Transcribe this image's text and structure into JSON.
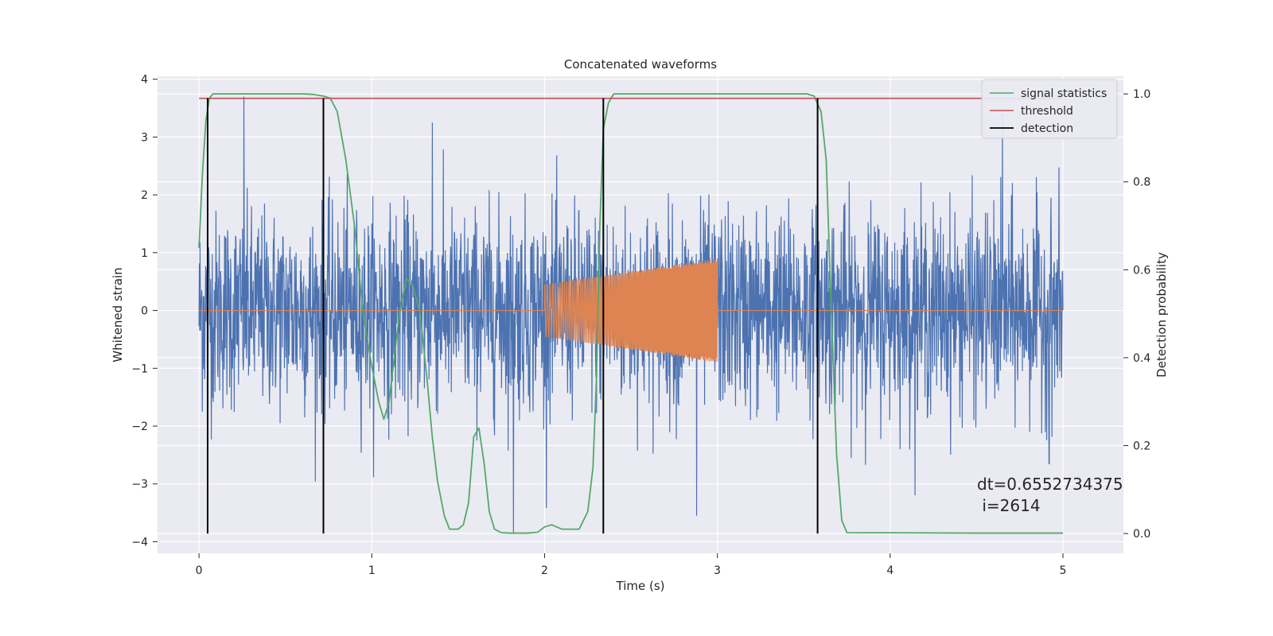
{
  "chart_data": {
    "type": "line",
    "title": "Concatenated waveforms",
    "xlabel": "Time (s)",
    "ylabel": "Whitened strain",
    "ylabel_right": "Detection probability",
    "xlim": [
      -0.24,
      5.35
    ],
    "ylim": [
      -4.2,
      4.05
    ],
    "ylim_right": [
      -0.045,
      1.04
    ],
    "x_ticks": [
      0,
      1,
      2,
      3,
      4,
      5
    ],
    "y_ticks": [
      -4,
      -3,
      -2,
      -1,
      0,
      1,
      2,
      3,
      4
    ],
    "y_ticks_right": [
      0.0,
      0.2,
      0.4,
      0.6,
      0.8,
      1.0
    ],
    "y_tick_labels": [
      "−4",
      "−3",
      "−2",
      "−1",
      "0",
      "1",
      "2",
      "3",
      "4"
    ],
    "y_tick_labels_right": [
      "0.0",
      "0.2",
      "0.4",
      "0.6",
      "0.8",
      "1.0"
    ],
    "grid": true,
    "legend_position": "top-right",
    "colors": {
      "strain": "#4c72b0",
      "template": "#dd8452",
      "signal": "#55a868",
      "threshold": "#c44e52",
      "detection": "#000000",
      "background": "#eaeaf2",
      "grid": "#ffffff"
    },
    "series": [
      {
        "name": "",
        "axis": "left",
        "kind": "noise",
        "x_range": [
          0,
          5
        ],
        "amplitude_std": 0.85,
        "peak_points": [
          {
            "x": 0.26,
            "y": 3.7
          },
          {
            "x": 1.35,
            "y": 3.25
          },
          {
            "x": 4.65,
            "y": 3.4
          },
          {
            "x": 1.82,
            "y": -3.85
          },
          {
            "x": 2.88,
            "y": -3.55
          },
          {
            "x": 0.05,
            "y": -2.5
          },
          {
            "x": 4.92,
            "y": -2.65
          }
        ]
      },
      {
        "name": "",
        "axis": "left",
        "kind": "chirp",
        "x_range": [
          2.0,
          3.0
        ],
        "amplitude_start": 0.45,
        "amplitude_end": 0.9,
        "flat_value": 0
      },
      {
        "name": "signal statistics",
        "axis": "right",
        "x": [
          0,
          0.02,
          0.04,
          0.06,
          0.08,
          0.1,
          0.6,
          0.66,
          0.72,
          0.76,
          0.8,
          0.85,
          0.9,
          0.95,
          1.0,
          1.04,
          1.07,
          1.1,
          1.13,
          1.16,
          1.2,
          1.24,
          1.28,
          1.32,
          1.35,
          1.38,
          1.42,
          1.45,
          1.5,
          1.53,
          1.56,
          1.59,
          1.62,
          1.65,
          1.68,
          1.71,
          1.75,
          1.8,
          1.9,
          1.96,
          2.0,
          2.04,
          2.1,
          2.15,
          2.2,
          2.25,
          2.28,
          2.3,
          2.32,
          2.34,
          2.37,
          2.4,
          2.45,
          3.52,
          3.56,
          3.6,
          3.63,
          3.66,
          3.69,
          3.72,
          3.75,
          4.5,
          5.0
        ],
        "y": [
          0.65,
          0.82,
          0.94,
          0.99,
          1.0,
          1.0,
          1.0,
          0.999,
          0.995,
          0.99,
          0.96,
          0.85,
          0.7,
          0.5,
          0.38,
          0.3,
          0.26,
          0.3,
          0.4,
          0.5,
          0.58,
          0.56,
          0.5,
          0.35,
          0.22,
          0.12,
          0.04,
          0.01,
          0.01,
          0.02,
          0.07,
          0.22,
          0.24,
          0.16,
          0.05,
          0.01,
          0.002,
          0.001,
          0.001,
          0.003,
          0.015,
          0.02,
          0.01,
          0.01,
          0.01,
          0.05,
          0.15,
          0.35,
          0.7,
          0.92,
          0.98,
          1.0,
          1.0,
          1.0,
          0.995,
          0.96,
          0.85,
          0.5,
          0.18,
          0.03,
          0.002,
          0.001,
          0.001
        ]
      },
      {
        "name": "threshold",
        "axis": "right",
        "x": [
          0,
          5
        ],
        "y": [
          0.99,
          0.99
        ]
      },
      {
        "name": "detection",
        "axis": "right",
        "kind": "vlines",
        "x": [
          0.05,
          0.72,
          2.34,
          3.58
        ],
        "y_range": [
          0.0,
          0.99
        ]
      }
    ],
    "annotations": [
      {
        "text_line1": "dt=0.6552734375",
        "text_line2": " i=2614",
        "x": 4.5,
        "y": 0.09
      }
    ]
  }
}
